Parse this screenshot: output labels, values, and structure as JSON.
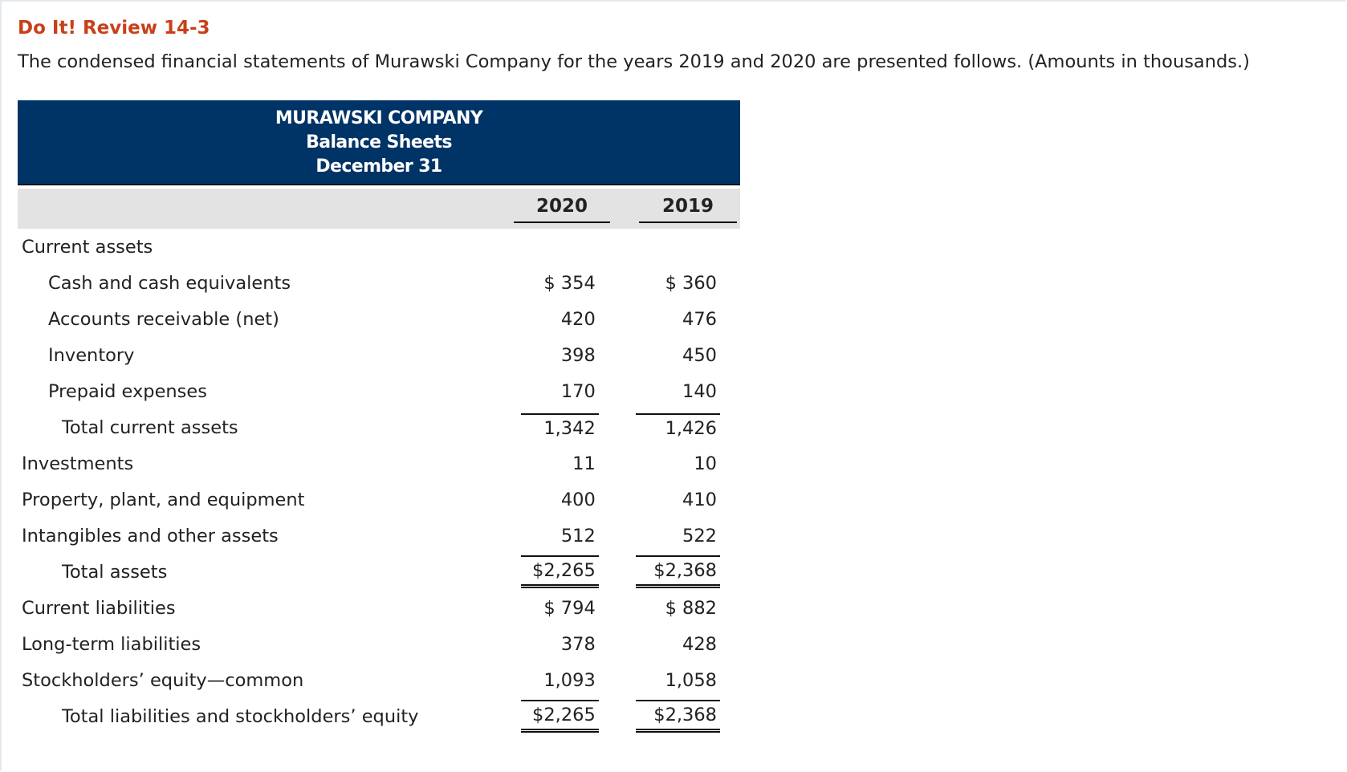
{
  "header": {
    "title": "Do It! Review 14-3",
    "intro": "The condensed financial statements of Murawski Company for the years 2019 and 2020 are presented follows. (Amounts in thousands.)"
  },
  "table": {
    "heading": [
      "MURAWSKI COMPANY",
      "Balance Sheets",
      "December 31"
    ],
    "columns": [
      "2020",
      "2019"
    ],
    "rows": [
      {
        "label": "Current assets"
      },
      {
        "label": "Cash and cash equivalents",
        "values": [
          "$ 354",
          "$ 360"
        ]
      },
      {
        "label": "Accounts receivable (net)",
        "values": [
          "420",
          "476"
        ]
      },
      {
        "label": "Inventory",
        "values": [
          "398",
          "450"
        ]
      },
      {
        "label": "Prepaid expenses",
        "values": [
          "170",
          "140"
        ]
      },
      {
        "label": "Total current assets",
        "values": [
          "1,342",
          "1,426"
        ]
      },
      {
        "label": "Investments",
        "values": [
          "11",
          "10"
        ]
      },
      {
        "label": "Property, plant, and equipment",
        "values": [
          "400",
          "410"
        ]
      },
      {
        "label": "Intangibles and other assets",
        "values": [
          "512",
          "522"
        ]
      },
      {
        "label": "Total assets",
        "values": [
          "$2,265",
          "$2,368"
        ]
      },
      {
        "label": "Current liabilities",
        "values": [
          "$ 794",
          "$ 882"
        ]
      },
      {
        "label": "Long-term liabilities",
        "values": [
          "378",
          "428"
        ]
      },
      {
        "label": "Stockholders’ equity—common",
        "values": [
          "1,093",
          "1,058"
        ]
      },
      {
        "label": "Total liabilities and stockholders’ equity",
        "values": [
          "$2,265",
          "$2,368"
        ]
      }
    ]
  }
}
